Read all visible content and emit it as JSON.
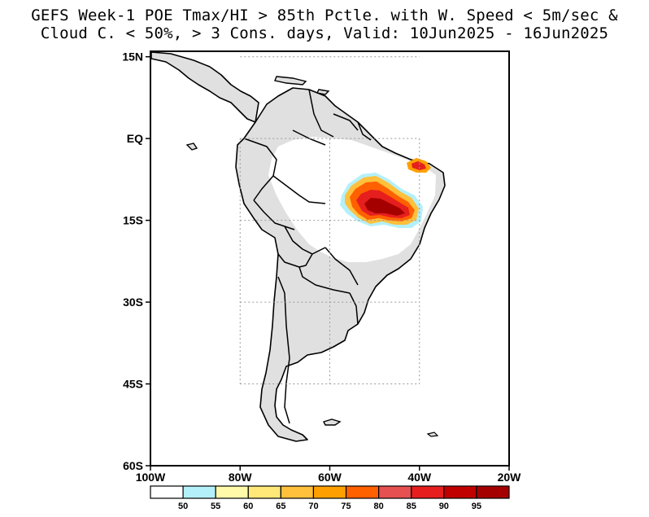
{
  "title": {
    "line1": "GEFS Week-1 POE Tmax/HI > 85th Pctle. with W. Speed < 5m/sec &",
    "line2": "Cloud C. < 50%, > 3 Cons. days, Valid: 10Jun2025 - 16Jun2025"
  },
  "map": {
    "lon_range": [
      -100,
      -20
    ],
    "lat_range": [
      -60,
      16
    ],
    "grid_lines": "dotted",
    "y_ticks": [
      {
        "lat": 15,
        "label": "15N"
      },
      {
        "lat": 0,
        "label": "EQ"
      },
      {
        "lat": -15,
        "label": "15S"
      },
      {
        "lat": -30,
        "label": "30S"
      },
      {
        "lat": -45,
        "label": "45S"
      },
      {
        "lat": -60,
        "label": "60S"
      }
    ],
    "x_ticks": [
      {
        "lon": -100,
        "label": "100W"
      },
      {
        "lon": -80,
        "label": "80W"
      },
      {
        "lon": -60,
        "label": "60W"
      },
      {
        "lon": -40,
        "label": "40W"
      },
      {
        "lon": -20,
        "label": "20W"
      }
    ],
    "land_color": "#e0e0e0",
    "hotspots": [
      {
        "region": "Central Brazil",
        "lon": -49.5,
        "lat": -10.8,
        "max_category": 95
      },
      {
        "region": "NE Brazil coast",
        "lon": -40.5,
        "lat": -4.3,
        "max_category": 90
      }
    ]
  },
  "colorbar": {
    "colors": [
      "#ffffff",
      "#b4f0fa",
      "#fffaaa",
      "#ffe878",
      "#ffc03c",
      "#ffa000",
      "#ff6000",
      "#e65050",
      "#e61e1e",
      "#c00000",
      "#a50000"
    ],
    "labels": [
      "50",
      "55",
      "60",
      "65",
      "70",
      "75",
      "80",
      "85",
      "90",
      "95"
    ]
  }
}
